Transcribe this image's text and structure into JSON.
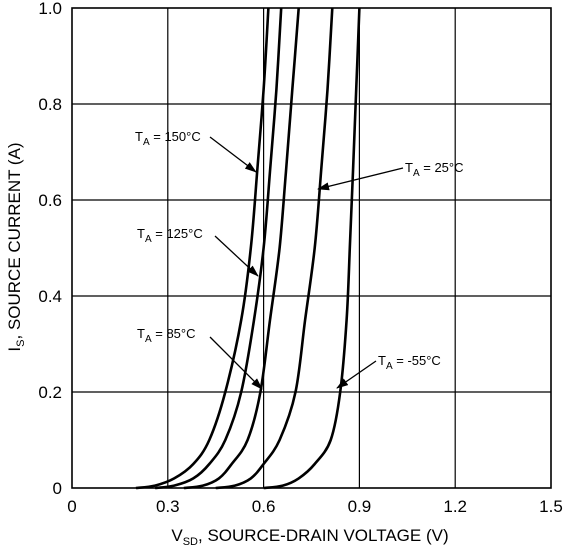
{
  "chart_data": {
    "type": "line",
    "title": "",
    "xlabel": {
      "main": "V",
      "sub": "SD",
      "rest": ", SOURCE-DRAIN VOLTAGE (V)"
    },
    "ylabel": {
      "main": "I",
      "sub": "S",
      "rest": ", SOURCE CURRENT (A)"
    },
    "xlim": [
      0,
      1.5
    ],
    "ylim": [
      0,
      1.0
    ],
    "xticks": [
      0,
      0.3,
      0.6,
      0.9,
      1.2,
      1.5
    ],
    "xtick_labels": [
      "0",
      "0.3",
      "0.6",
      "0.9",
      "1.2",
      "1.5"
    ],
    "yticks": [
      0,
      0.2,
      0.4,
      0.6,
      0.8,
      1.0
    ],
    "ytick_labels": [
      "0",
      "0.2",
      "0.4",
      "0.6",
      "0.8",
      "1.0"
    ],
    "grid": true,
    "line_color": "#000000",
    "series": [
      {
        "label_main": "T",
        "label_sub": "A",
        "label_rest": " = 150°C",
        "points": [
          [
            0.2,
            0
          ],
          [
            0.26,
            0.005
          ],
          [
            0.32,
            0.02
          ],
          [
            0.38,
            0.05
          ],
          [
            0.43,
            0.1
          ],
          [
            0.48,
            0.2
          ],
          [
            0.53,
            0.35
          ],
          [
            0.56,
            0.5
          ],
          [
            0.58,
            0.66
          ],
          [
            0.6,
            0.83
          ],
          [
            0.615,
            1.0
          ]
        ]
      },
      {
        "label_main": "T",
        "label_sub": "A",
        "label_rest": " = 125°C",
        "points": [
          [
            0.26,
            0
          ],
          [
            0.32,
            0.005
          ],
          [
            0.38,
            0.02
          ],
          [
            0.43,
            0.05
          ],
          [
            0.48,
            0.1
          ],
          [
            0.53,
            0.2
          ],
          [
            0.57,
            0.35
          ],
          [
            0.6,
            0.5
          ],
          [
            0.62,
            0.66
          ],
          [
            0.64,
            0.83
          ],
          [
            0.655,
            1.0
          ]
        ]
      },
      {
        "label_main": "T",
        "label_sub": "A",
        "label_rest": " = 85°C",
        "points": [
          [
            0.35,
            0
          ],
          [
            0.41,
            0.005
          ],
          [
            0.46,
            0.02
          ],
          [
            0.5,
            0.05
          ],
          [
            0.55,
            0.1
          ],
          [
            0.59,
            0.2
          ],
          [
            0.62,
            0.35
          ],
          [
            0.65,
            0.5
          ],
          [
            0.67,
            0.66
          ],
          [
            0.69,
            0.83
          ],
          [
            0.71,
            1.0
          ]
        ]
      },
      {
        "label_main": "T",
        "label_sub": "A",
        "label_rest": " = 25°C",
        "points": [
          [
            0.45,
            0
          ],
          [
            0.51,
            0.005
          ],
          [
            0.56,
            0.02
          ],
          [
            0.6,
            0.05
          ],
          [
            0.65,
            0.1
          ],
          [
            0.7,
            0.2
          ],
          [
            0.73,
            0.35
          ],
          [
            0.76,
            0.5
          ],
          [
            0.78,
            0.66
          ],
          [
            0.8,
            0.83
          ],
          [
            0.815,
            1.0
          ]
        ]
      },
      {
        "label_main": "T",
        "label_sub": "A",
        "label_rest": " = -55°C",
        "points": [
          [
            0.6,
            0
          ],
          [
            0.66,
            0.005
          ],
          [
            0.71,
            0.02
          ],
          [
            0.76,
            0.05
          ],
          [
            0.81,
            0.1
          ],
          [
            0.84,
            0.2
          ],
          [
            0.86,
            0.35
          ],
          [
            0.87,
            0.5
          ],
          [
            0.88,
            0.66
          ],
          [
            0.89,
            0.83
          ],
          [
            0.9,
            1.0
          ]
        ]
      }
    ]
  }
}
